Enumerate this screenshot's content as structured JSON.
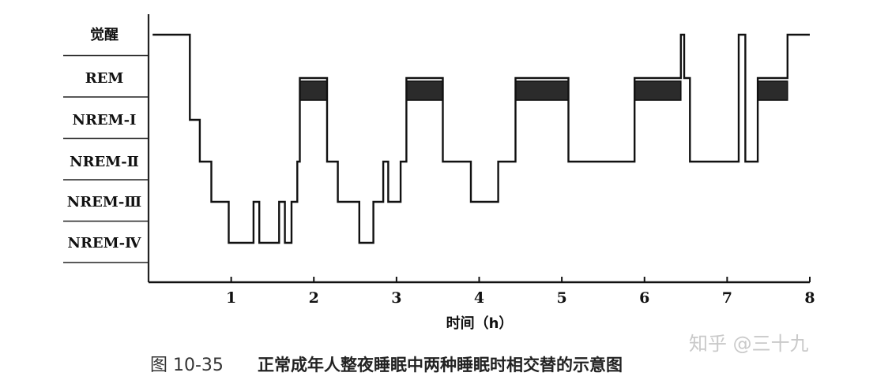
{
  "chart_data": {
    "type": "line",
    "title": "",
    "xlabel": "时间（h）",
    "ylabel": "",
    "x_ticks": [
      "1",
      "2",
      "3",
      "4",
      "5",
      "6",
      "7",
      "8"
    ],
    "xlim": [
      0,
      8
    ],
    "y_categories": [
      "觉醒",
      "REM",
      "NREM-Ⅰ",
      "NREM-Ⅱ",
      "NREM-Ⅲ",
      "NREM-Ⅳ"
    ],
    "hypnogram": [
      [
        0.05,
        "觉醒"
      ],
      [
        0.5,
        "觉醒"
      ],
      [
        0.5,
        "NREM-Ⅰ"
      ],
      [
        0.62,
        "NREM-Ⅰ"
      ],
      [
        0.62,
        "NREM-Ⅱ"
      ],
      [
        0.76,
        "NREM-Ⅱ"
      ],
      [
        0.76,
        "NREM-Ⅲ"
      ],
      [
        0.97,
        "NREM-Ⅲ"
      ],
      [
        0.97,
        "NREM-Ⅳ"
      ],
      [
        1.27,
        "NREM-Ⅳ"
      ],
      [
        1.27,
        "NREM-Ⅲ"
      ],
      [
        1.34,
        "NREM-Ⅲ"
      ],
      [
        1.34,
        "NREM-Ⅳ"
      ],
      [
        1.58,
        "NREM-Ⅳ"
      ],
      [
        1.58,
        "NREM-Ⅲ"
      ],
      [
        1.65,
        "NREM-Ⅲ"
      ],
      [
        1.65,
        "NREM-Ⅳ"
      ],
      [
        1.73,
        "NREM-Ⅳ"
      ],
      [
        1.73,
        "NREM-Ⅲ"
      ],
      [
        1.8,
        "NREM-Ⅲ"
      ],
      [
        1.8,
        "NREM-Ⅱ"
      ],
      [
        1.83,
        "NREM-Ⅱ"
      ],
      [
        1.83,
        "REM"
      ],
      [
        2.16,
        "REM"
      ],
      [
        2.16,
        "NREM-Ⅱ"
      ],
      [
        2.29,
        "NREM-Ⅱ"
      ],
      [
        2.29,
        "NREM-Ⅲ"
      ],
      [
        2.55,
        "NREM-Ⅲ"
      ],
      [
        2.55,
        "NREM-Ⅳ"
      ],
      [
        2.72,
        "NREM-Ⅳ"
      ],
      [
        2.72,
        "NREM-Ⅲ"
      ],
      [
        2.84,
        "NREM-Ⅲ"
      ],
      [
        2.84,
        "NREM-Ⅱ"
      ],
      [
        2.9,
        "NREM-Ⅱ"
      ],
      [
        2.9,
        "NREM-Ⅲ"
      ],
      [
        3.05,
        "NREM-Ⅲ"
      ],
      [
        3.05,
        "NREM-Ⅱ"
      ],
      [
        3.12,
        "NREM-Ⅱ"
      ],
      [
        3.12,
        "REM"
      ],
      [
        3.56,
        "REM"
      ],
      [
        3.56,
        "NREM-Ⅱ"
      ],
      [
        3.9,
        "NREM-Ⅱ"
      ],
      [
        3.9,
        "NREM-Ⅲ"
      ],
      [
        4.23,
        "NREM-Ⅲ"
      ],
      [
        4.23,
        "NREM-Ⅱ"
      ],
      [
        4.44,
        "NREM-Ⅱ"
      ],
      [
        4.44,
        "REM"
      ],
      [
        5.08,
        "REM"
      ],
      [
        5.08,
        "NREM-Ⅱ"
      ],
      [
        5.88,
        "NREM-Ⅱ"
      ],
      [
        5.88,
        "REM"
      ],
      [
        6.44,
        "REM"
      ],
      [
        6.44,
        "觉醒"
      ],
      [
        6.48,
        "觉醒"
      ],
      [
        6.48,
        "REM"
      ],
      [
        6.55,
        "REM"
      ],
      [
        6.55,
        "NREM-Ⅱ"
      ],
      [
        7.14,
        "NREM-Ⅱ"
      ],
      [
        7.14,
        "觉醒"
      ],
      [
        7.22,
        "觉醒"
      ],
      [
        7.22,
        "NREM-Ⅱ"
      ],
      [
        7.37,
        "NREM-Ⅱ"
      ],
      [
        7.37,
        "REM"
      ],
      [
        7.73,
        "REM"
      ],
      [
        7.73,
        "觉醒"
      ],
      [
        8.0,
        "觉醒"
      ]
    ],
    "rem_periods": [
      [
        1.83,
        2.16
      ],
      [
        3.12,
        3.56
      ],
      [
        4.44,
        5.08
      ],
      [
        5.88,
        6.44
      ],
      [
        7.37,
        7.73
      ]
    ],
    "grid": false,
    "legend": "none"
  },
  "caption": {
    "prefix": "图 10-35",
    "text": "正常成年人整夜睡眠中两种睡眠时相交替的示意图"
  },
  "watermark": "知乎 @三十九",
  "colors": {
    "line": "#111111",
    "rem_fill": "#2b2b2b",
    "label_divider": "#222222"
  }
}
